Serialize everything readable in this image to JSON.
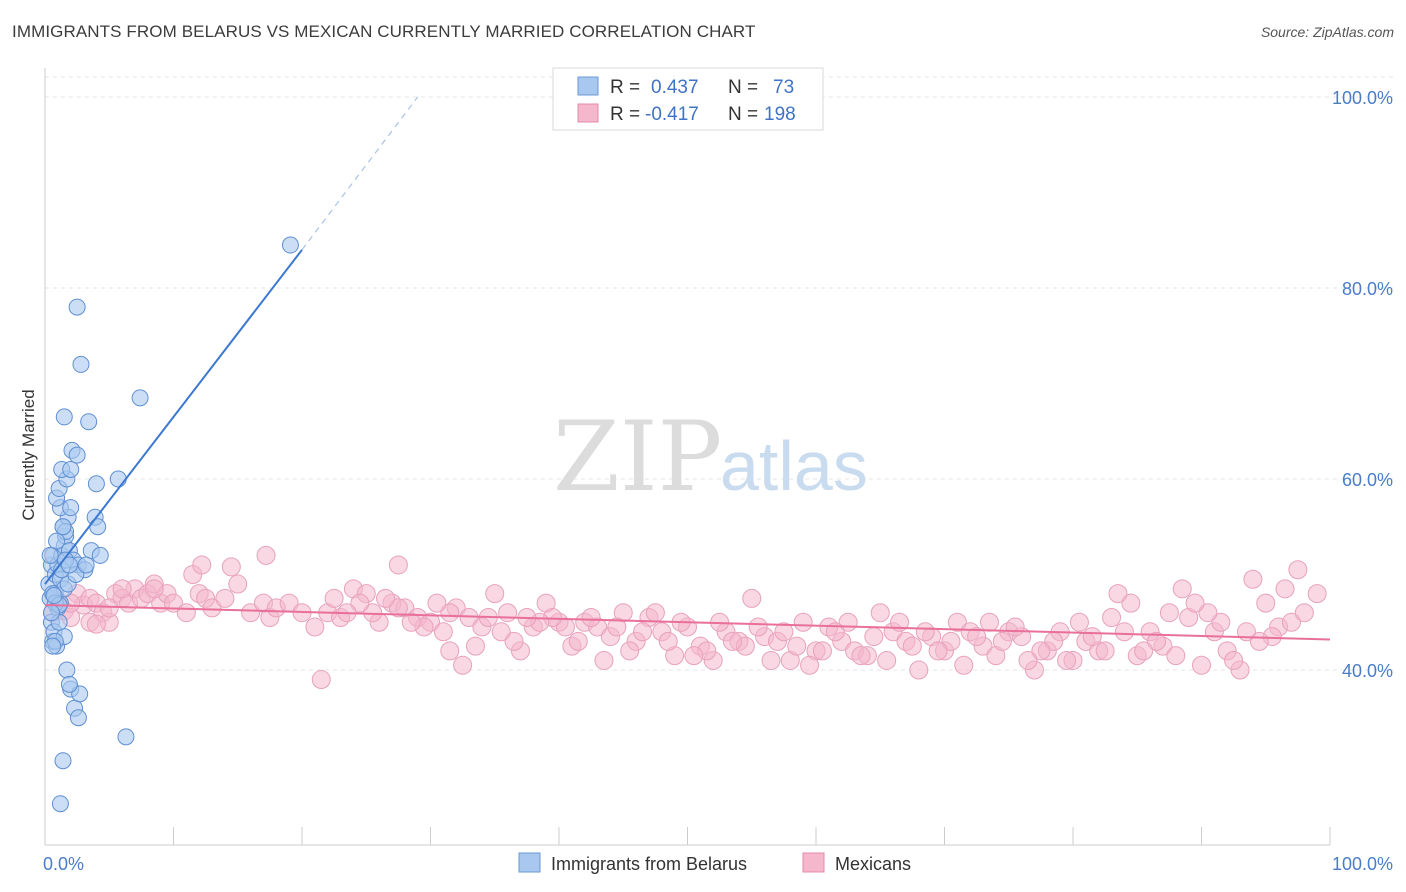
{
  "title": "IMMIGRANTS FROM BELARUS VS MEXICAN CURRENTLY MARRIED CORRELATION CHART",
  "source": "Source: ZipAtlas.com",
  "watermark": {
    "zip": "ZIP",
    "atlas": "atlas"
  },
  "colors": {
    "blue": "#4a7cc9",
    "blue_fill": "#a9c8ef",
    "pink": "#e8709a",
    "pink_fill": "#f4b7cc"
  },
  "chart_data": {
    "type": "scatter",
    "title": "IMMIGRANTS FROM BELARUS VS MEXICAN CURRENTLY MARRIED CORRELATION CHART",
    "xlabel": "",
    "ylabel": "Currently Married",
    "xlim": [
      0,
      100
    ],
    "ylim": [
      20,
      102
    ],
    "x_ticks": [
      "0.0%",
      "100.0%"
    ],
    "y_ticks": [
      {
        "value": 40,
        "label": "40.0%"
      },
      {
        "value": 60,
        "label": "60.0%"
      },
      {
        "value": 80,
        "label": "80.0%"
      },
      {
        "value": 100,
        "label": "100.0%"
      }
    ],
    "grid": true,
    "legend": {
      "placement": "top-center",
      "rows": [
        {
          "r_label": "R =",
          "r": "0.437",
          "n_label": "N =",
          "n": "73"
        },
        {
          "r_label": "R =",
          "r": "-0.417",
          "n_label": "N =",
          "n": "198"
        }
      ]
    },
    "series": [
      {
        "name": "Immigrants from Belarus",
        "color": "#4a7cc9",
        "trend": {
          "x": [
            0,
            20
          ],
          "y": [
            49.0,
            84.0
          ],
          "dashed_to": [
            29,
            100
          ]
        },
        "points": [
          [
            0.3,
            49
          ],
          [
            0.5,
            51
          ],
          [
            0.4,
            47.5
          ],
          [
            0.6,
            52
          ],
          [
            0.8,
            48
          ],
          [
            0.5,
            45
          ],
          [
            0.6,
            43
          ],
          [
            0.7,
            44
          ],
          [
            0.9,
            42.5
          ],
          [
            1.0,
            46.5
          ],
          [
            1.2,
            47
          ],
          [
            0.8,
            50
          ],
          [
            1.0,
            51
          ],
          [
            1.3,
            52
          ],
          [
            1.5,
            53
          ],
          [
            1.6,
            54
          ],
          [
            1.4,
            55
          ],
          [
            1.8,
            56
          ],
          [
            1.2,
            57
          ],
          [
            0.9,
            58
          ],
          [
            1.1,
            59
          ],
          [
            1.7,
            60
          ],
          [
            1.3,
            61
          ],
          [
            2.0,
            61
          ],
          [
            2.1,
            63
          ],
          [
            2.5,
            62.5
          ],
          [
            1.5,
            66.5
          ],
          [
            3.4,
            66
          ],
          [
            2.8,
            72
          ],
          [
            2.5,
            78
          ],
          [
            7.4,
            68.5
          ],
          [
            4.0,
            59.5
          ],
          [
            5.7,
            60
          ],
          [
            3.9,
            56
          ],
          [
            4.1,
            55
          ],
          [
            2.0,
            57
          ],
          [
            1.6,
            54.5
          ],
          [
            1.9,
            52.5
          ],
          [
            2.2,
            51.5
          ],
          [
            2.6,
            51
          ],
          [
            3.1,
            50.5
          ],
          [
            3.6,
            52.5
          ],
          [
            4.3,
            52
          ],
          [
            1.2,
            49.5
          ],
          [
            1.5,
            48.5
          ],
          [
            0.6,
            48
          ],
          [
            0.8,
            47
          ],
          [
            1.1,
            46.8
          ],
          [
            1.8,
            49
          ],
          [
            2.4,
            50
          ],
          [
            3.2,
            51
          ],
          [
            0.4,
            52
          ],
          [
            0.9,
            53.5
          ],
          [
            1.4,
            55
          ],
          [
            1.7,
            40
          ],
          [
            2.0,
            38
          ],
          [
            2.3,
            36
          ],
          [
            2.6,
            35
          ],
          [
            1.4,
            30.5
          ],
          [
            1.2,
            26
          ],
          [
            6.3,
            33
          ],
          [
            2.7,
            37.5
          ],
          [
            1.9,
            38.5
          ],
          [
            1.5,
            43.5
          ],
          [
            0.8,
            43
          ],
          [
            0.6,
            42.5
          ],
          [
            1.1,
            45
          ],
          [
            0.5,
            46
          ],
          [
            0.7,
            47.8
          ],
          [
            1.3,
            50.5
          ],
          [
            1.6,
            51.5
          ],
          [
            1.9,
            51
          ],
          [
            19.1,
            84.5
          ]
        ],
        "sizes_r": 8
      },
      {
        "name": "Mexicans",
        "color": "#e8709a",
        "trend": {
          "x": [
            0,
            100
          ],
          "y": [
            46.8,
            43.2
          ]
        },
        "points": [
          [
            0.6,
            46
          ],
          [
            1.0,
            47.2
          ],
          [
            1.5,
            46.2
          ],
          [
            2.0,
            45.5
          ],
          [
            2.5,
            48
          ],
          [
            3.0,
            46.8
          ],
          [
            3.5,
            47.5
          ],
          [
            4.0,
            47
          ],
          [
            4.5,
            46
          ],
          [
            5.0,
            45
          ],
          [
            5.5,
            48
          ],
          [
            6.0,
            47.5
          ],
          [
            6.5,
            47
          ],
          [
            7.0,
            48.5
          ],
          [
            7.5,
            47.5
          ],
          [
            8.0,
            48
          ],
          [
            8.5,
            49
          ],
          [
            9.0,
            47
          ],
          [
            9.5,
            48
          ],
          [
            10,
            47
          ],
          [
            11,
            46
          ],
          [
            11.5,
            50
          ],
          [
            12,
            48
          ],
          [
            12.5,
            47.5
          ],
          [
            13,
            46.5
          ],
          [
            14,
            47.5
          ],
          [
            15,
            49
          ],
          [
            16,
            46
          ],
          [
            17,
            47
          ],
          [
            17.5,
            45.5
          ],
          [
            18,
            46.5
          ],
          [
            19,
            47
          ],
          [
            20,
            46
          ],
          [
            21,
            44.5
          ],
          [
            21.5,
            39
          ],
          [
            22,
            46
          ],
          [
            23,
            45.5
          ],
          [
            24,
            48.5
          ],
          [
            25,
            48
          ],
          [
            26,
            45
          ],
          [
            27,
            47
          ],
          [
            28,
            46.5
          ],
          [
            29,
            45.5
          ],
          [
            30,
            45
          ],
          [
            31,
            44
          ],
          [
            31.5,
            42
          ],
          [
            32,
            46.5
          ],
          [
            33,
            45.5
          ],
          [
            34,
            44.5
          ],
          [
            35,
            48
          ],
          [
            36,
            46
          ],
          [
            37,
            42
          ],
          [
            38,
            44.5
          ],
          [
            39,
            47
          ],
          [
            40,
            45
          ],
          [
            41,
            42.5
          ],
          [
            42,
            45
          ],
          [
            43,
            44.5
          ],
          [
            44,
            43.5
          ],
          [
            45,
            46
          ],
          [
            46,
            43
          ],
          [
            47,
            45.5
          ],
          [
            48,
            44
          ],
          [
            49,
            41.5
          ],
          [
            50,
            44.5
          ],
          [
            51,
            42.5
          ],
          [
            52,
            41
          ],
          [
            53,
            44
          ],
          [
            54,
            43
          ],
          [
            55,
            47.5
          ],
          [
            56,
            43.5
          ],
          [
            57,
            43
          ],
          [
            58,
            41
          ],
          [
            59,
            45
          ],
          [
            60,
            42
          ],
          [
            61,
            44.5
          ],
          [
            62,
            43
          ],
          [
            63,
            42
          ],
          [
            64,
            41.5
          ],
          [
            65,
            46
          ],
          [
            66,
            44
          ],
          [
            67,
            43
          ],
          [
            68,
            40
          ],
          [
            69,
            43.5
          ],
          [
            70,
            42
          ],
          [
            71,
            45
          ],
          [
            72,
            44
          ],
          [
            73,
            42.5
          ],
          [
            74,
            41.5
          ],
          [
            75,
            44
          ],
          [
            76,
            43.5
          ],
          [
            77,
            40
          ],
          [
            78,
            42
          ],
          [
            79,
            44
          ],
          [
            80,
            41
          ],
          [
            81,
            43
          ],
          [
            82,
            42
          ],
          [
            83,
            45.5
          ],
          [
            84,
            44
          ],
          [
            85,
            41.5
          ],
          [
            86,
            44
          ],
          [
            87,
            42.5
          ],
          [
            88,
            41.5
          ],
          [
            89,
            45.5
          ],
          [
            90,
            40.5
          ],
          [
            91,
            44
          ],
          [
            92,
            42
          ],
          [
            93,
            40
          ],
          [
            94,
            49.5
          ],
          [
            95,
            47
          ],
          [
            96,
            44.5
          ],
          [
            97,
            45
          ],
          [
            98,
            46
          ],
          [
            99,
            48
          ],
          [
            97.5,
            50.5
          ],
          [
            96.5,
            48.5
          ],
          [
            95.5,
            43.5
          ],
          [
            94.5,
            43
          ],
          [
            93.5,
            44
          ],
          [
            92.5,
            41
          ],
          [
            91.5,
            45
          ],
          [
            90.5,
            46
          ],
          [
            89.5,
            47
          ],
          [
            88.5,
            48.5
          ],
          [
            87.5,
            46
          ],
          [
            86.5,
            43
          ],
          [
            85.5,
            42
          ],
          [
            84.5,
            47
          ],
          [
            83.5,
            48
          ],
          [
            82.5,
            42
          ],
          [
            81.5,
            43.5
          ],
          [
            80.5,
            45
          ],
          [
            79.5,
            41
          ],
          [
            78.5,
            43
          ],
          [
            77.5,
            42
          ],
          [
            76.5,
            41
          ],
          [
            75.5,
            44.5
          ],
          [
            74.5,
            43
          ],
          [
            73.5,
            45
          ],
          [
            72.5,
            43.5
          ],
          [
            71.5,
            40.5
          ],
          [
            70.5,
            43
          ],
          [
            69.5,
            42
          ],
          [
            68.5,
            44
          ],
          [
            67.5,
            42.5
          ],
          [
            66.5,
            45
          ],
          [
            65.5,
            41
          ],
          [
            64.5,
            43.5
          ],
          [
            63.5,
            41.5
          ],
          [
            62.5,
            45
          ],
          [
            61.5,
            44
          ],
          [
            60.5,
            42
          ],
          [
            59.5,
            40.5
          ],
          [
            58.5,
            42.5
          ],
          [
            57.5,
            44
          ],
          [
            56.5,
            41
          ],
          [
            55.5,
            44.5
          ],
          [
            54.5,
            42.5
          ],
          [
            53.5,
            43
          ],
          [
            52.5,
            45
          ],
          [
            51.5,
            42
          ],
          [
            50.5,
            41.5
          ],
          [
            49.5,
            45
          ],
          [
            48.5,
            43
          ],
          [
            47.5,
            46
          ],
          [
            46.5,
            44
          ],
          [
            45.5,
            42
          ],
          [
            44.5,
            44.5
          ],
          [
            43.5,
            41
          ],
          [
            42.5,
            45.5
          ],
          [
            41.5,
            43
          ],
          [
            40.5,
            44.5
          ],
          [
            39.5,
            45.5
          ],
          [
            38.5,
            45
          ],
          [
            37.5,
            45.5
          ],
          [
            36.5,
            43
          ],
          [
            35.5,
            44
          ],
          [
            34.5,
            45.5
          ],
          [
            33.5,
            42.5
          ],
          [
            32.5,
            40.5
          ],
          [
            31.5,
            46
          ],
          [
            30.5,
            47
          ],
          [
            29.5,
            44.5
          ],
          [
            28.5,
            45
          ],
          [
            27.5,
            46.5
          ],
          [
            26.5,
            47.5
          ],
          [
            25.5,
            46
          ],
          [
            24.5,
            47
          ],
          [
            23.5,
            46
          ],
          [
            22.5,
            47.5
          ],
          [
            2.0,
            47
          ],
          [
            3.5,
            45
          ],
          [
            4.0,
            44.8
          ],
          [
            5.0,
            46.5
          ],
          [
            6.0,
            48.5
          ],
          [
            8.5,
            48.5
          ],
          [
            12.2,
            51
          ],
          [
            14.5,
            50.8
          ],
          [
            17.2,
            52
          ],
          [
            27.5,
            51
          ]
        ],
        "sizes_r": 9
      }
    ]
  },
  "bottom_legend": [
    {
      "label": "Immigrants from Belarus"
    },
    {
      "label": "Mexicans"
    }
  ]
}
